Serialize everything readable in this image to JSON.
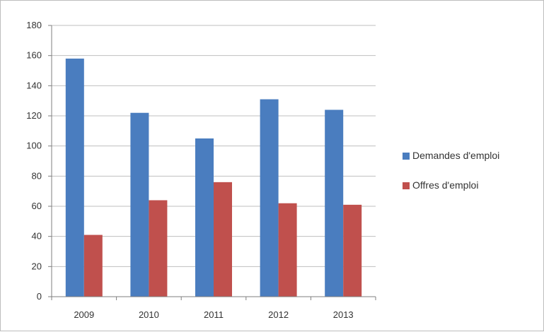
{
  "chart_data": {
    "type": "bar",
    "title": "",
    "xlabel": "",
    "ylabel": "",
    "categories": [
      "2009",
      "2010",
      "2011",
      "2012",
      "2013"
    ],
    "series": [
      {
        "name": "Demandes d'emploi",
        "values": [
          158,
          122,
          105,
          131,
          124
        ],
        "color": "#4a7dbf"
      },
      {
        "name": "Offres d'emploi",
        "values": [
          41,
          64,
          76,
          62,
          61
        ],
        "color": "#c0504d"
      }
    ],
    "ylim": [
      0,
      180
    ],
    "yticks": [
      0,
      20,
      40,
      60,
      80,
      100,
      120,
      140,
      160,
      180
    ],
    "grid": true,
    "legend_position": "right",
    "colors": {
      "grid": "#bfbfbf",
      "axis": "#7f7f7f",
      "text": "#333333"
    }
  }
}
